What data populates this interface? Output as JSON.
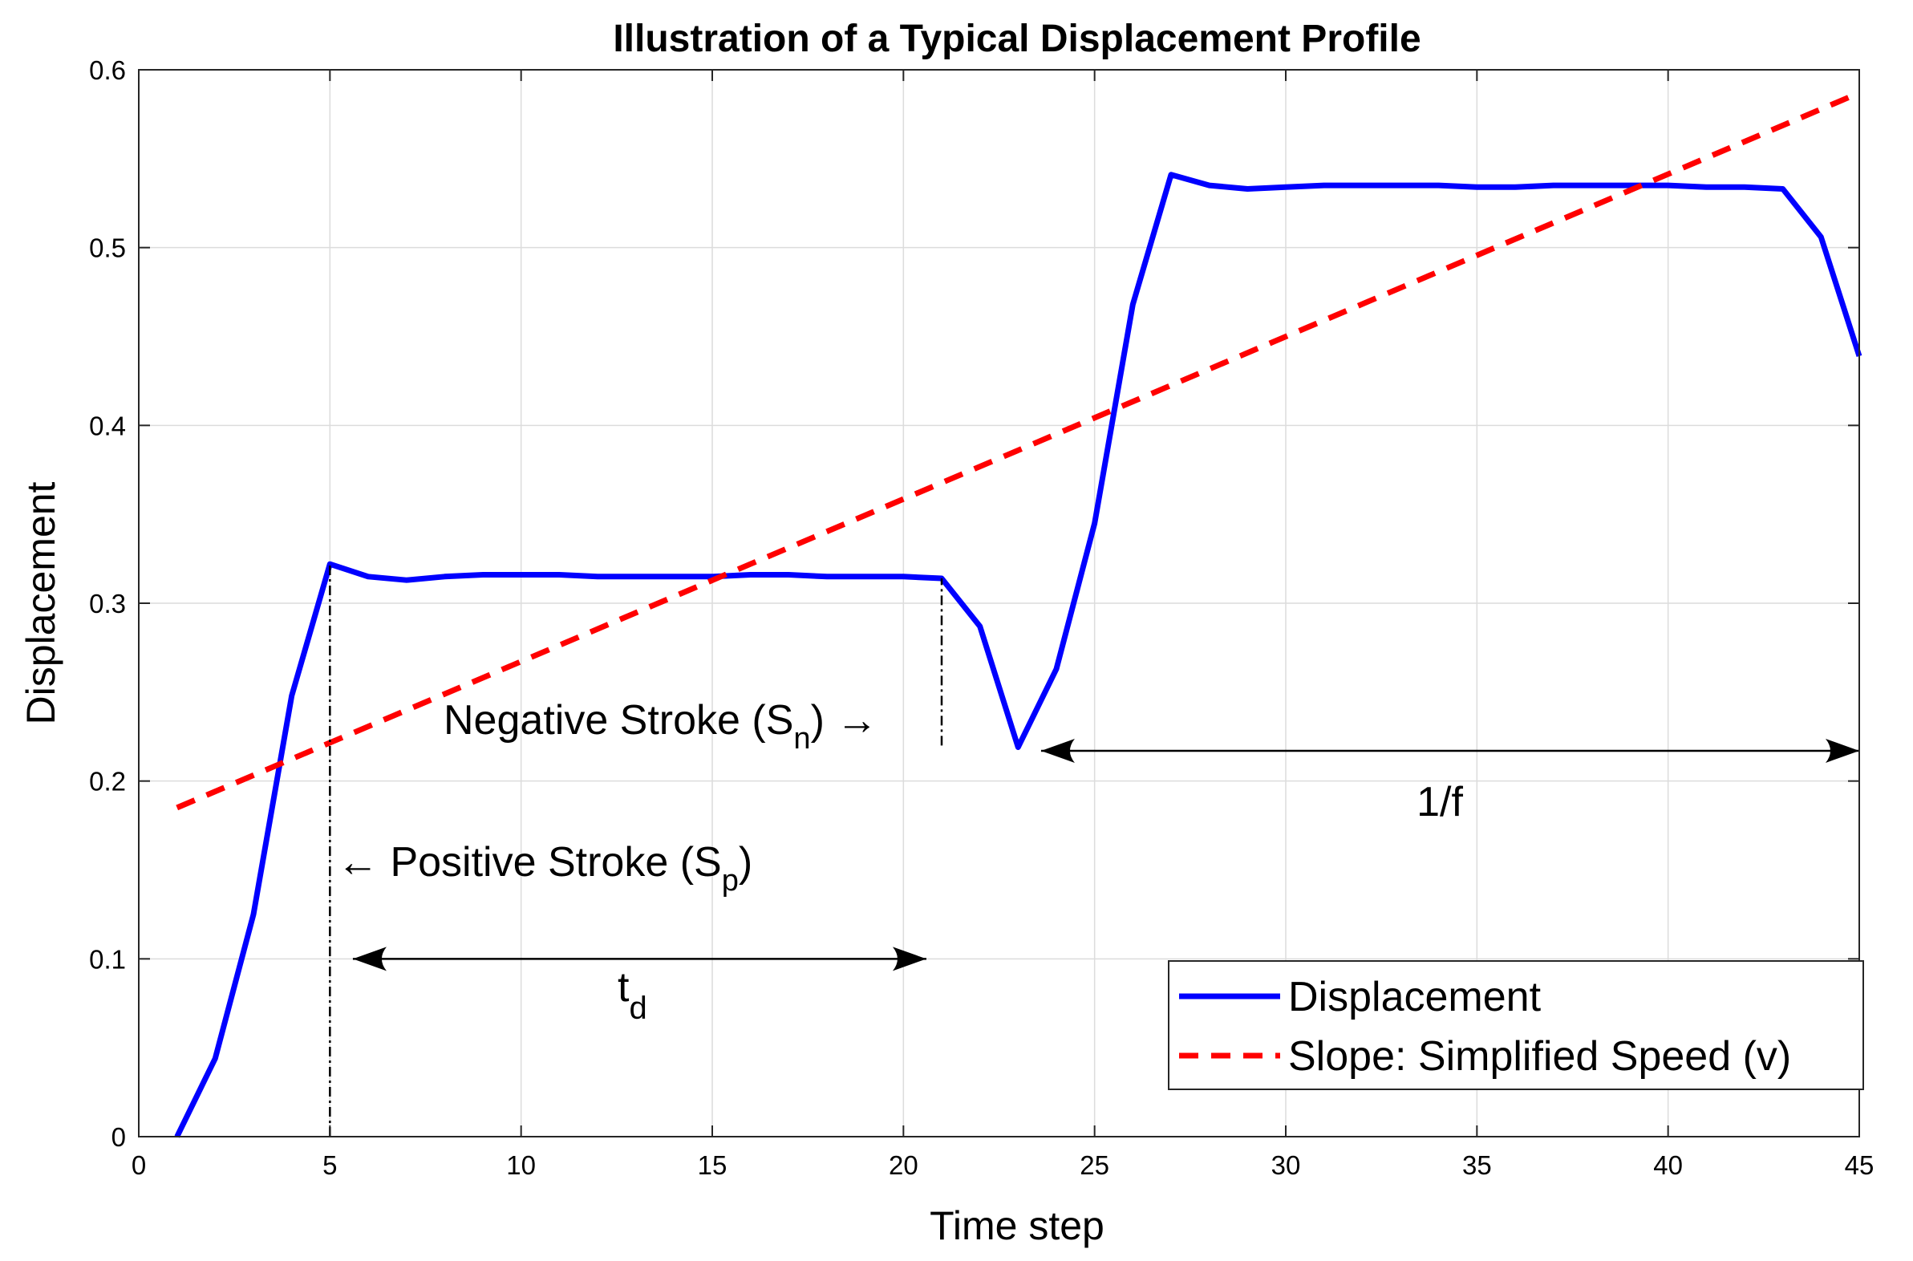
{
  "chart_data": {
    "type": "line",
    "title": "Illustration of a Typical Displacement Profile",
    "xlabel": "Time step",
    "ylabel": "Displacement",
    "xlim": [
      0,
      45
    ],
    "ylim": [
      0,
      0.6
    ],
    "xticks": [
      0,
      5,
      10,
      15,
      20,
      25,
      30,
      35,
      40,
      45
    ],
    "yticks": [
      0,
      0.1,
      0.2,
      0.3,
      0.4,
      0.5,
      0.6
    ],
    "xtick_labels": [
      "0",
      "5",
      "10",
      "15",
      "20",
      "25",
      "30",
      "35",
      "40",
      "45"
    ],
    "ytick_labels": [
      "0",
      "0.1",
      "0.2",
      "0.3",
      "0.4",
      "0.5",
      "0.6"
    ],
    "grid": true,
    "legend_position": "bottom-right",
    "series": [
      {
        "name": "Displacement",
        "style": "solid",
        "color": "#0000ff",
        "x": [
          1,
          2,
          3,
          4,
          5,
          6,
          7,
          8,
          9,
          10,
          11,
          12,
          13,
          14,
          15,
          16,
          17,
          18,
          19,
          20,
          21,
          22,
          23,
          24,
          25,
          26,
          27,
          28,
          29,
          30,
          31,
          32,
          33,
          34,
          35,
          36,
          37,
          38,
          39,
          40,
          41,
          42,
          43,
          44,
          45
        ],
        "y": [
          0,
          0.044,
          0.125,
          0.248,
          0.322,
          0.315,
          0.313,
          0.315,
          0.316,
          0.316,
          0.316,
          0.315,
          0.315,
          0.315,
          0.315,
          0.316,
          0.316,
          0.315,
          0.315,
          0.315,
          0.314,
          0.287,
          0.219,
          0.263,
          0.345,
          0.468,
          0.541,
          0.535,
          0.533,
          0.534,
          0.535,
          0.535,
          0.535,
          0.535,
          0.534,
          0.534,
          0.535,
          0.535,
          0.535,
          0.535,
          0.534,
          0.534,
          0.533,
          0.506,
          0.439
        ]
      },
      {
        "name": "Slope: Simplified Speed (v)",
        "style": "dashed",
        "color": "#ff0000",
        "x": [
          1,
          45
        ],
        "y": [
          0.185,
          0.587
        ]
      }
    ],
    "annotations": [
      {
        "id": "negative-stroke",
        "text": "Negative Stroke (S",
        "sub": "n",
        "tail": ") →"
      },
      {
        "id": "positive-stroke",
        "text": "← Positive Stroke (S",
        "sub": "p",
        "tail": ")"
      },
      {
        "id": "td",
        "text": "t",
        "sub": "d"
      },
      {
        "id": "period",
        "text": "1/f"
      }
    ],
    "markers": {
      "dashdot_lines": [
        {
          "x": 5,
          "y_from": 0,
          "y_to": 0.322
        },
        {
          "x": 21,
          "y_from": 0.22,
          "y_to": 0.314
        }
      ],
      "arrows": [
        {
          "id": "td-arrow",
          "x_from": 5.6,
          "x_to": 20.6,
          "y": 0.1
        },
        {
          "id": "period-arrow",
          "x_from": 23.6,
          "x_to": 45,
          "y": 0.217
        }
      ]
    }
  }
}
